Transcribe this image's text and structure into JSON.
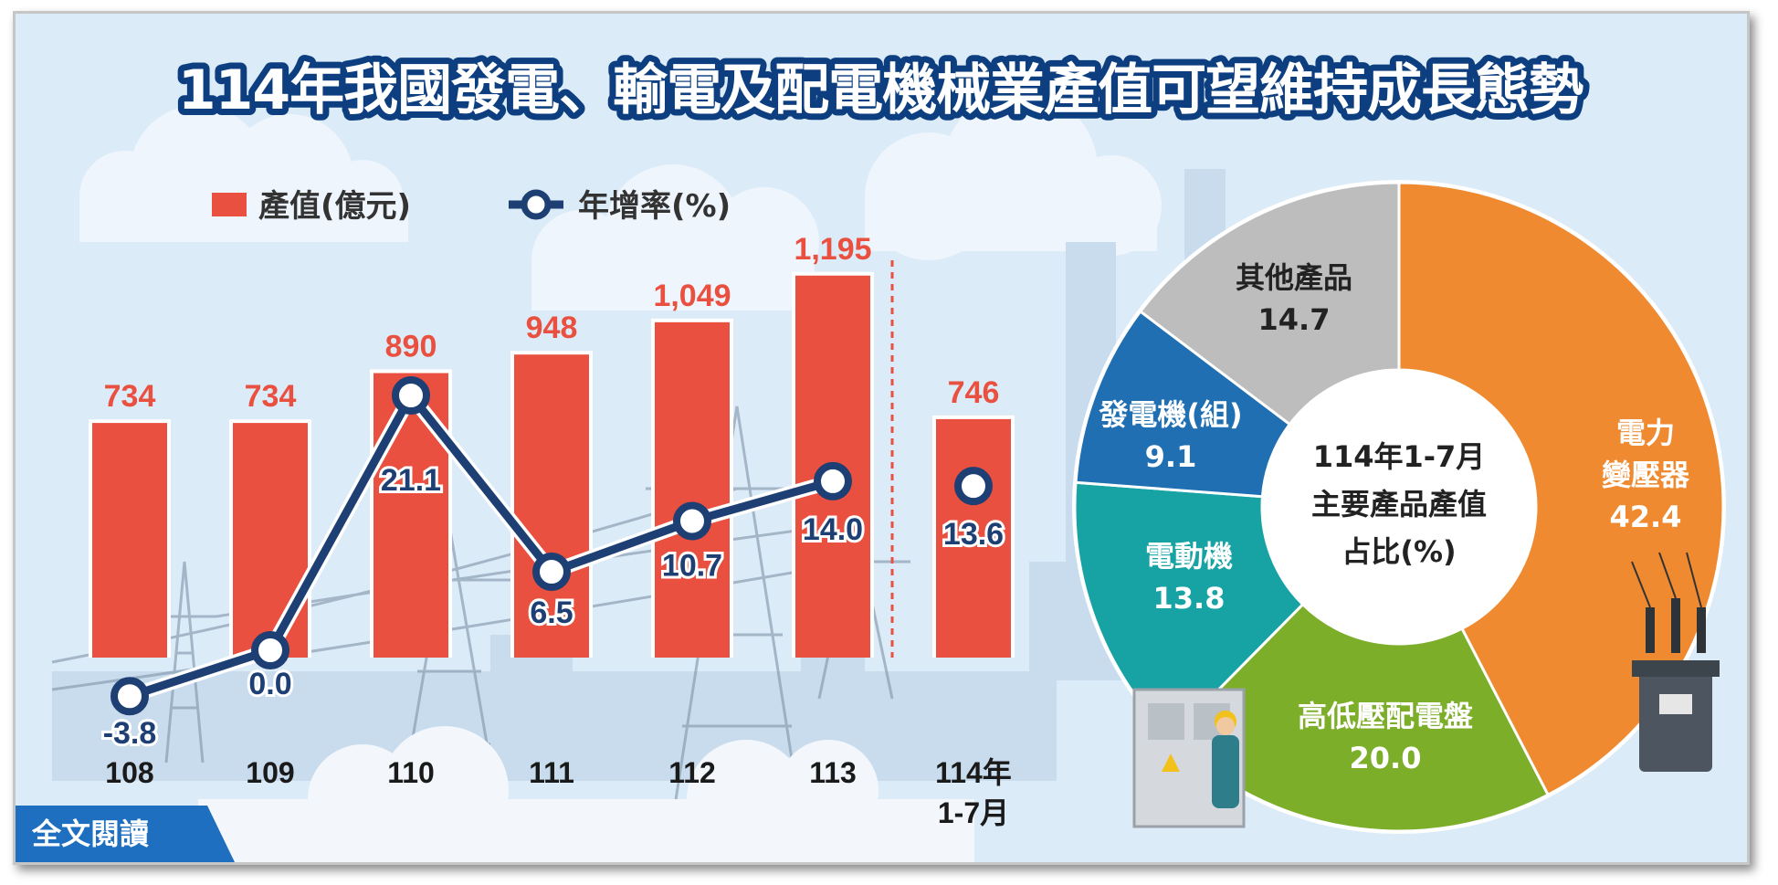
{
  "title": "114年我國發電、輸電及配電機械業產值可望維持成長態勢",
  "read_more_label": "全文閱讀",
  "colors": {
    "bar": "#e9503f",
    "line": "#1d3f73",
    "background": "#dcebf8",
    "title_stroke": "#0d3f80",
    "read_more": "#1f6fc0"
  },
  "chart_data": [
    {
      "type": "bar",
      "categories": [
        "108",
        "109",
        "110",
        "111",
        "112",
        "113",
        "114年 1-7月"
      ],
      "series": [
        {
          "name": "產值(億元)",
          "type": "bar",
          "values": [
            734,
            734,
            890,
            948,
            1049,
            1195,
            746
          ],
          "labels": [
            "734",
            "734",
            "890",
            "948",
            "1,049",
            "1,195",
            "746"
          ]
        },
        {
          "name": "年增率(%)",
          "type": "line",
          "values": [
            -3.8,
            0.0,
            21.1,
            6.5,
            10.7,
            14.0,
            13.6
          ],
          "labels": [
            "-3.8",
            "0.0",
            "21.1",
            "6.5",
            "10.7",
            "14.0",
            "13.6"
          ]
        }
      ],
      "legend": [
        "產值(億元)",
        "年增率(%)"
      ],
      "legend_position": "top-left",
      "grid": false
    },
    {
      "type": "pie",
      "center_text": [
        "114年1-7月",
        "主要產品產值",
        "占比(%)"
      ],
      "slices": [
        {
          "label": "電力變壓器",
          "label_lines": [
            "電力",
            "變壓器"
          ],
          "value": 42.4,
          "value_label": "42.4",
          "color": "#ef8a31"
        },
        {
          "label": "高低壓配電盤",
          "label_lines": [
            "高低壓配電盤"
          ],
          "value": 20.0,
          "value_label": "20.0",
          "color": "#7cae2a"
        },
        {
          "label": "電動機",
          "label_lines": [
            "電動機"
          ],
          "value": 13.8,
          "value_label": "13.8",
          "color": "#17a2a3"
        },
        {
          "label": "發電機(組)",
          "label_lines": [
            "發電機(組)"
          ],
          "value": 9.1,
          "value_label": "9.1",
          "color": "#1f6fb2"
        },
        {
          "label": "其他產品",
          "label_lines": [
            "其他產品"
          ],
          "value": 14.7,
          "value_label": "14.7",
          "color": "#bdbdbd"
        }
      ]
    }
  ]
}
